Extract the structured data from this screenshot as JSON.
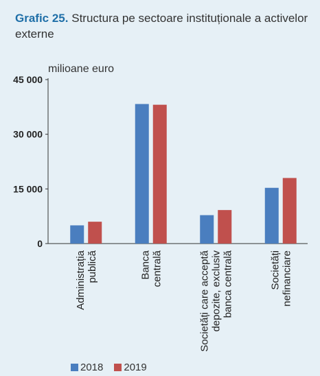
{
  "header": {
    "title_number": "Grafic 25.",
    "title_text": "Structura pe sectoare instituționale a activelor externe"
  },
  "chart_data": {
    "type": "bar",
    "unit_label": "milioane euro",
    "categories": [
      [
        "Administrația",
        "publică"
      ],
      [
        "Banca",
        "centrală"
      ],
      [
        "Societăți care acceptă",
        "depozite, exclusiv",
        "banca centrală"
      ],
      [
        "Societăți",
        "nefinanciare"
      ]
    ],
    "series": [
      {
        "name": "2018",
        "color": "#4a7ebf",
        "values": [
          5000,
          38300,
          7800,
          15300
        ]
      },
      {
        "name": "2019",
        "color": "#c0504d",
        "values": [
          6000,
          38100,
          9200,
          18000
        ]
      }
    ],
    "ylim": [
      0,
      45000
    ],
    "yticks": [
      0,
      15000,
      30000,
      45000
    ],
    "ytick_labels": [
      "0",
      "15 000",
      "30 000",
      "45 000"
    ],
    "grid": false,
    "legend_position": "bottom-left"
  }
}
